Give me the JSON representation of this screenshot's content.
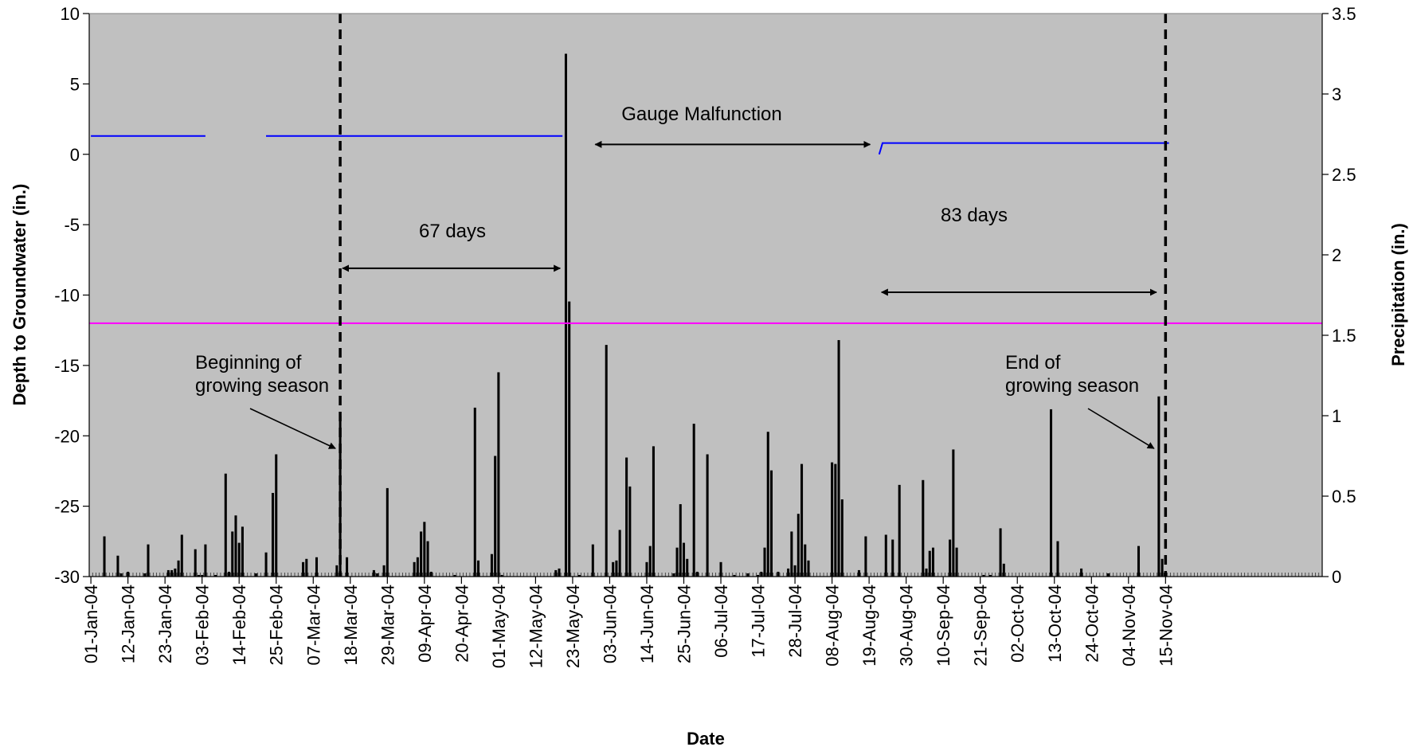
{
  "chart_data": {
    "type": "bar",
    "title": "",
    "xlabel": "Date",
    "ylabel_left": "Depth to Groundwater (in.)",
    "ylabel_right": "Precipitation (in.)",
    "ylim_left": [
      -30,
      10
    ],
    "ylim_right": [
      0,
      3.5
    ],
    "yticks_left": [
      10,
      5,
      0,
      -5,
      -10,
      -15,
      -20,
      -25,
      -30
    ],
    "yticks_right": [
      3.5,
      3,
      2.5,
      2,
      1.5,
      1,
      0.5,
      0
    ],
    "x_range": [
      "2004-01-01",
      "2004-12-31"
    ],
    "x_tick_labels": [
      "01-Jan-04",
      "12-Jan-04",
      "23-Jan-04",
      "03-Feb-04",
      "14-Feb-04",
      "25-Feb-04",
      "07-Mar-04",
      "18-Mar-04",
      "29-Mar-04",
      "09-Apr-04",
      "20-Apr-04",
      "01-May-04",
      "12-May-04",
      "23-May-04",
      "03-Jun-04",
      "14-Jun-04",
      "25-Jun-04",
      "06-Jul-04",
      "17-Jul-04",
      "28-Jul-04",
      "08-Aug-04",
      "19-Aug-04",
      "30-Aug-04",
      "10-Sep-04",
      "21-Sep-04",
      "02-Oct-04",
      "13-Oct-04",
      "24-Oct-04",
      "04-Nov-04",
      "15-Nov-04"
    ],
    "precipitation_series": {
      "axis": "right",
      "color": "#000000",
      "points": [
        [
          "2004-01-05",
          0.25
        ],
        [
          "2004-01-09",
          0.13
        ],
        [
          "2004-01-10",
          0.02
        ],
        [
          "2004-01-12",
          0.03
        ],
        [
          "2004-01-17",
          0.02
        ],
        [
          "2004-01-18",
          0.2
        ],
        [
          "2004-01-24",
          0.04
        ],
        [
          "2004-01-25",
          0.04
        ],
        [
          "2004-01-26",
          0.05
        ],
        [
          "2004-01-27",
          0.1
        ],
        [
          "2004-01-28",
          0.26
        ],
        [
          "2004-02-01",
          0.17
        ],
        [
          "2004-02-02",
          0.01
        ],
        [
          "2004-02-03",
          0.01
        ],
        [
          "2004-02-04",
          0.2
        ],
        [
          "2004-02-07",
          0.01
        ],
        [
          "2004-02-10",
          0.64
        ],
        [
          "2004-02-11",
          0.03
        ],
        [
          "2004-02-12",
          0.28
        ],
        [
          "2004-02-13",
          0.38
        ],
        [
          "2004-02-14",
          0.21
        ],
        [
          "2004-02-15",
          0.31
        ],
        [
          "2004-02-19",
          0.02
        ],
        [
          "2004-02-22",
          0.15
        ],
        [
          "2004-02-24",
          0.52
        ],
        [
          "2004-02-25",
          0.76
        ],
        [
          "2004-03-04",
          0.09
        ],
        [
          "2004-03-05",
          0.11
        ],
        [
          "2004-03-08",
          0.12
        ],
        [
          "2004-03-14",
          0.07
        ],
        [
          "2004-03-15",
          1.0
        ],
        [
          "2004-03-17",
          0.12
        ],
        [
          "2004-03-25",
          0.04
        ],
        [
          "2004-03-26",
          0.02
        ],
        [
          "2004-03-28",
          0.07
        ],
        [
          "2004-03-29",
          0.55
        ],
        [
          "2004-04-06",
          0.09
        ],
        [
          "2004-04-07",
          0.12
        ],
        [
          "2004-04-08",
          0.28
        ],
        [
          "2004-04-09",
          0.34
        ],
        [
          "2004-04-10",
          0.22
        ],
        [
          "2004-04-11",
          0.03
        ],
        [
          "2004-04-18",
          0.01
        ],
        [
          "2004-04-24",
          1.05
        ],
        [
          "2004-04-25",
          0.1
        ],
        [
          "2004-04-29",
          0.14
        ],
        [
          "2004-04-30",
          0.75
        ],
        [
          "2004-05-01",
          1.27
        ],
        [
          "2004-05-02",
          0.01
        ],
        [
          "2004-05-18",
          0.04
        ],
        [
          "2004-05-19",
          0.05
        ],
        [
          "2004-05-21",
          3.25
        ],
        [
          "2004-05-22",
          1.71
        ],
        [
          "2004-05-25",
          0.01
        ],
        [
          "2004-05-29",
          0.2
        ],
        [
          "2004-06-02",
          1.44
        ],
        [
          "2004-06-04",
          0.09
        ],
        [
          "2004-06-05",
          0.1
        ],
        [
          "2004-06-06",
          0.29
        ],
        [
          "2004-06-08",
          0.74
        ],
        [
          "2004-06-09",
          0.56
        ],
        [
          "2004-06-14",
          0.09
        ],
        [
          "2004-06-15",
          0.19
        ],
        [
          "2004-06-16",
          0.81
        ],
        [
          "2004-06-22",
          0.02
        ],
        [
          "2004-06-23",
          0.18
        ],
        [
          "2004-06-24",
          0.45
        ],
        [
          "2004-06-25",
          0.21
        ],
        [
          "2004-06-26",
          0.11
        ],
        [
          "2004-06-28",
          0.95
        ],
        [
          "2004-06-29",
          0.03
        ],
        [
          "2004-07-02",
          0.76
        ],
        [
          "2004-07-06",
          0.09
        ],
        [
          "2004-07-10",
          0.01
        ],
        [
          "2004-07-14",
          0.02
        ],
        [
          "2004-07-17",
          0.01
        ],
        [
          "2004-07-18",
          0.03
        ],
        [
          "2004-07-19",
          0.18
        ],
        [
          "2004-07-20",
          0.9
        ],
        [
          "2004-07-21",
          0.66
        ],
        [
          "2004-07-23",
          0.03
        ],
        [
          "2004-07-26",
          0.05
        ],
        [
          "2004-07-27",
          0.28
        ],
        [
          "2004-07-28",
          0.07
        ],
        [
          "2004-07-29",
          0.39
        ],
        [
          "2004-07-30",
          0.7
        ],
        [
          "2004-07-31",
          0.2
        ],
        [
          "2004-08-01",
          0.1
        ],
        [
          "2004-08-08",
          0.71
        ],
        [
          "2004-08-09",
          0.7
        ],
        [
          "2004-08-10",
          1.47
        ],
        [
          "2004-08-11",
          0.48
        ],
        [
          "2004-08-16",
          0.04
        ],
        [
          "2004-08-18",
          0.25
        ],
        [
          "2004-08-24",
          0.26
        ],
        [
          "2004-08-26",
          0.23
        ],
        [
          "2004-08-28",
          0.57
        ],
        [
          "2004-09-04",
          0.6
        ],
        [
          "2004-09-05",
          0.05
        ],
        [
          "2004-09-06",
          0.16
        ],
        [
          "2004-09-07",
          0.18
        ],
        [
          "2004-09-12",
          0.23
        ],
        [
          "2004-09-13",
          0.79
        ],
        [
          "2004-09-14",
          0.18
        ],
        [
          "2004-09-22",
          0.01
        ],
        [
          "2004-09-24",
          0.01
        ],
        [
          "2004-09-27",
          0.3
        ],
        [
          "2004-09-28",
          0.08
        ],
        [
          "2004-10-12",
          1.04
        ],
        [
          "2004-10-14",
          0.22
        ],
        [
          "2004-10-21",
          0.05
        ],
        [
          "2004-10-29",
          0.02
        ],
        [
          "2004-11-07",
          0.19
        ],
        [
          "2004-11-13",
          1.12
        ],
        [
          "2004-11-14",
          0.11
        ]
      ]
    },
    "groundwater_series": {
      "axis": "left",
      "color": "#0000ff",
      "segments": [
        [
          [
            "2004-01-01",
            1.3
          ],
          [
            "2004-02-04",
            1.3
          ]
        ],
        [
          [
            "2004-02-22",
            1.3
          ],
          [
            "2004-05-20",
            1.3
          ]
        ],
        [
          [
            "2004-08-22",
            0.0
          ],
          [
            "2004-08-23",
            0.8
          ],
          [
            "2004-11-16",
            0.8
          ]
        ]
      ]
    },
    "threshold_line": {
      "axis": "left",
      "y": -12,
      "color": "#ff00ff"
    },
    "season_lines": [
      {
        "date": "2004-03-15",
        "style": "dashed",
        "color": "#000000"
      },
      {
        "date": "2004-11-15",
        "style": "dashed",
        "color": "#000000"
      }
    ],
    "annotations": [
      {
        "id": "beginning",
        "lines": [
          "Beginning of",
          "growing season"
        ]
      },
      {
        "id": "end",
        "lines": [
          "End of",
          "growing season"
        ]
      },
      {
        "id": "gauge",
        "lines": [
          "Gauge Malfunction"
        ]
      },
      {
        "id": "days67",
        "lines": [
          "67 days"
        ]
      },
      {
        "id": "days83",
        "lines": [
          "83 days"
        ]
      }
    ],
    "span_arrows": [
      {
        "from": "2004-03-15",
        "to": "2004-05-20",
        "y": -8.1,
        "axis": "left"
      },
      {
        "from": "2004-05-29",
        "to": "2004-08-20",
        "y": 0.7,
        "axis": "left"
      },
      {
        "from": "2004-08-22",
        "to": "2004-11-13",
        "y": -9.8,
        "axis": "left"
      }
    ],
    "pointer_arrows": [
      {
        "annotation": "beginning",
        "to_date": "2004-03-15",
        "to_y": -20.9
      },
      {
        "annotation": "end",
        "to_date": "2004-11-13",
        "to_y": -20.9
      }
    ],
    "plot_background": "#c0c0c0",
    "legend": "none",
    "grid": false
  }
}
